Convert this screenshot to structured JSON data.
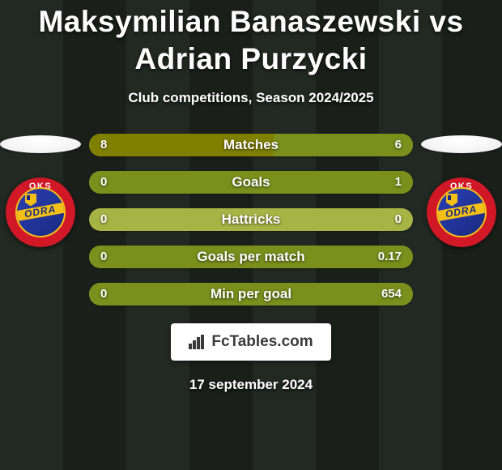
{
  "background": {
    "base_color": "#1a1f1a",
    "stripe_color": "#222822",
    "stripe_width": 78,
    "stripe_gap": 78
  },
  "title": {
    "text": "Maksymilian Banaszewski vs Adrian Purzycki",
    "fontsize": 37,
    "color": "#ffffff"
  },
  "subtitle": {
    "text": "Club competitions, Season 2024/2025",
    "fontsize": 17,
    "color": "#ffffff"
  },
  "crest": {
    "ring_color": "#d01827",
    "ring_text_top": "OKS",
    "inner_color_from": "#2a3fb5",
    "inner_color_to": "#1a2a80",
    "sash_color": "#f4c017",
    "sash_text": "ODRA",
    "sash_text_color": "#1a2a80"
  },
  "bars": {
    "track_color": "#a5b545",
    "left_fill_color": "#808000",
    "right_fill_color": "#7b8f1c",
    "height": 28,
    "radius": 14,
    "label_fontsize": 17,
    "value_fontsize": 15,
    "text_color": "#ffffff",
    "items": [
      {
        "label": "Matches",
        "left_value": "8",
        "right_value": "6",
        "left_pct": 57,
        "right_pct": 43
      },
      {
        "label": "Goals",
        "left_value": "0",
        "right_value": "1",
        "left_pct": 0,
        "right_pct": 100
      },
      {
        "label": "Hattricks",
        "left_value": "0",
        "right_value": "0",
        "left_pct": 0,
        "right_pct": 0
      },
      {
        "label": "Goals per match",
        "left_value": "0",
        "right_value": "0.17",
        "left_pct": 0,
        "right_pct": 100
      },
      {
        "label": "Min per goal",
        "left_value": "0",
        "right_value": "654",
        "left_pct": 0,
        "right_pct": 100
      }
    ]
  },
  "brand": {
    "text": "FcTables.com",
    "text_color": "#3a3a3a",
    "bg_color": "#ffffff",
    "icon_color": "#3a3a3a"
  },
  "date": {
    "text": "17 september 2024",
    "fontsize": 17
  }
}
